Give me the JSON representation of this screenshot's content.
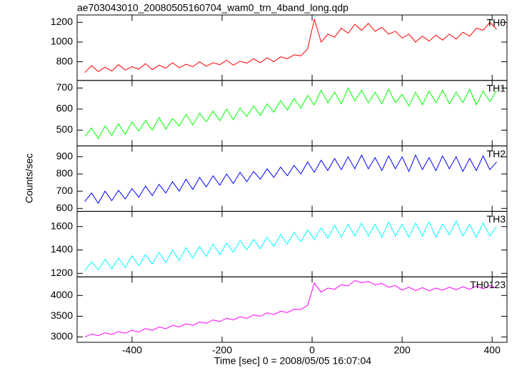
{
  "chart_data": {
    "type": "line",
    "title": "ae703043010_20080505160704_wam0_trn_4band_long.qdp",
    "x_label": "Time [sec] 0 = 2008/05/05 16:07:04",
    "y_label": "Counts/sec",
    "xlim": [
      -522,
      433
    ],
    "xticks": [
      -400,
      -200,
      0,
      200,
      400
    ],
    "x": [
      -505,
      -490,
      -475,
      -460,
      -445,
      -430,
      -415,
      -400,
      -385,
      -370,
      -355,
      -340,
      -325,
      -310,
      -295,
      -280,
      -265,
      -250,
      -235,
      -220,
      -205,
      -190,
      -175,
      -160,
      -145,
      -130,
      -115,
      -100,
      -85,
      -70,
      -55,
      -40,
      -25,
      -10,
      5,
      20,
      35,
      50,
      65,
      80,
      95,
      110,
      125,
      140,
      155,
      170,
      185,
      200,
      215,
      230,
      245,
      260,
      275,
      290,
      305,
      320,
      335,
      350,
      365,
      380,
      395,
      410
    ],
    "panels": [
      {
        "name": "TH0",
        "color": "#ff0000",
        "ylim": [
          610,
          1275
        ],
        "yticks": [
          800,
          1000,
          1200
        ],
        "values": [
          690,
          760,
          700,
          745,
          705,
          770,
          715,
          750,
          725,
          780,
          720,
          765,
          735,
          790,
          740,
          775,
          750,
          800,
          755,
          790,
          770,
          815,
          765,
          805,
          785,
          830,
          790,
          840,
          800,
          850,
          830,
          870,
          860,
          930,
          1230,
          1000,
          1080,
          1050,
          1140,
          1090,
          1180,
          1120,
          1190,
          1110,
          1150,
          1080,
          1110,
          1040,
          1080,
          1000,
          1060,
          1010,
          1070,
          1020,
          1080,
          1030,
          1100,
          1060,
          1140,
          1120,
          1200,
          1130
        ]
      },
      {
        "name": "TH1",
        "color": "#00ff00",
        "ylim": [
          425,
          736
        ],
        "yticks": [
          500,
          600,
          700
        ],
        "values": [
          470,
          510,
          460,
          520,
          475,
          530,
          480,
          540,
          495,
          545,
          500,
          560,
          505,
          555,
          520,
          575,
          525,
          580,
          540,
          590,
          545,
          600,
          550,
          605,
          565,
          615,
          570,
          625,
          585,
          640,
          595,
          650,
          605,
          665,
          620,
          690,
          630,
          680,
          625,
          700,
          640,
          690,
          630,
          680,
          625,
          695,
          630,
          670,
          615,
          680,
          620,
          685,
          630,
          690,
          625,
          680,
          630,
          695,
          620,
          685,
          635,
          690
        ]
      },
      {
        "name": "TH2",
        "color": "#0000ff",
        "ylim": [
          583,
          963
        ],
        "yticks": [
          600,
          700,
          800,
          900
        ],
        "values": [
          640,
          690,
          630,
          700,
          645,
          705,
          655,
          715,
          665,
          730,
          675,
          740,
          690,
          755,
          700,
          770,
          710,
          780,
          725,
          790,
          735,
          800,
          745,
          810,
          755,
          815,
          770,
          830,
          780,
          840,
          790,
          850,
          800,
          870,
          810,
          880,
          820,
          890,
          825,
          900,
          830,
          910,
          830,
          895,
          820,
          905,
          830,
          900,
          815,
          910,
          825,
          895,
          820,
          905,
          830,
          900,
          815,
          890,
          820,
          905,
          825,
          870
        ]
      },
      {
        "name": "TH3",
        "color": "#00ffff",
        "ylim": [
          1170,
          1730
        ],
        "yticks": [
          1200,
          1400,
          1600
        ],
        "values": [
          1220,
          1300,
          1230,
          1320,
          1240,
          1330,
          1250,
          1350,
          1265,
          1360,
          1280,
          1380,
          1290,
          1400,
          1310,
          1420,
          1330,
          1430,
          1345,
          1450,
          1360,
          1460,
          1380,
          1480,
          1400,
          1490,
          1410,
          1510,
          1430,
          1530,
          1450,
          1550,
          1470,
          1570,
          1490,
          1590,
          1500,
          1610,
          1510,
          1620,
          1520,
          1630,
          1520,
          1620,
          1510,
          1640,
          1520,
          1620,
          1510,
          1630,
          1520,
          1640,
          1510,
          1620,
          1530,
          1650,
          1520,
          1620,
          1510,
          1630,
          1520,
          1600
        ]
      },
      {
        "name": "TH0123",
        "color": "#ff00ff",
        "ylim": [
          2870,
          4450
        ],
        "yticks": [
          3000,
          3500,
          4000
        ],
        "values": [
          3000,
          3070,
          3030,
          3100,
          3060,
          3130,
          3090,
          3160,
          3120,
          3200,
          3160,
          3240,
          3200,
          3280,
          3240,
          3320,
          3280,
          3360,
          3330,
          3410,
          3370,
          3450,
          3410,
          3490,
          3450,
          3530,
          3500,
          3580,
          3540,
          3620,
          3590,
          3670,
          3660,
          3760,
          4300,
          4080,
          4180,
          4150,
          4260,
          4230,
          4360,
          4310,
          4340,
          4260,
          4290,
          4200,
          4240,
          4130,
          4200,
          4120,
          4190,
          4110,
          4180,
          4130,
          4200,
          4140,
          4210,
          4150,
          4230,
          4160,
          4240,
          4180
        ]
      }
    ]
  }
}
